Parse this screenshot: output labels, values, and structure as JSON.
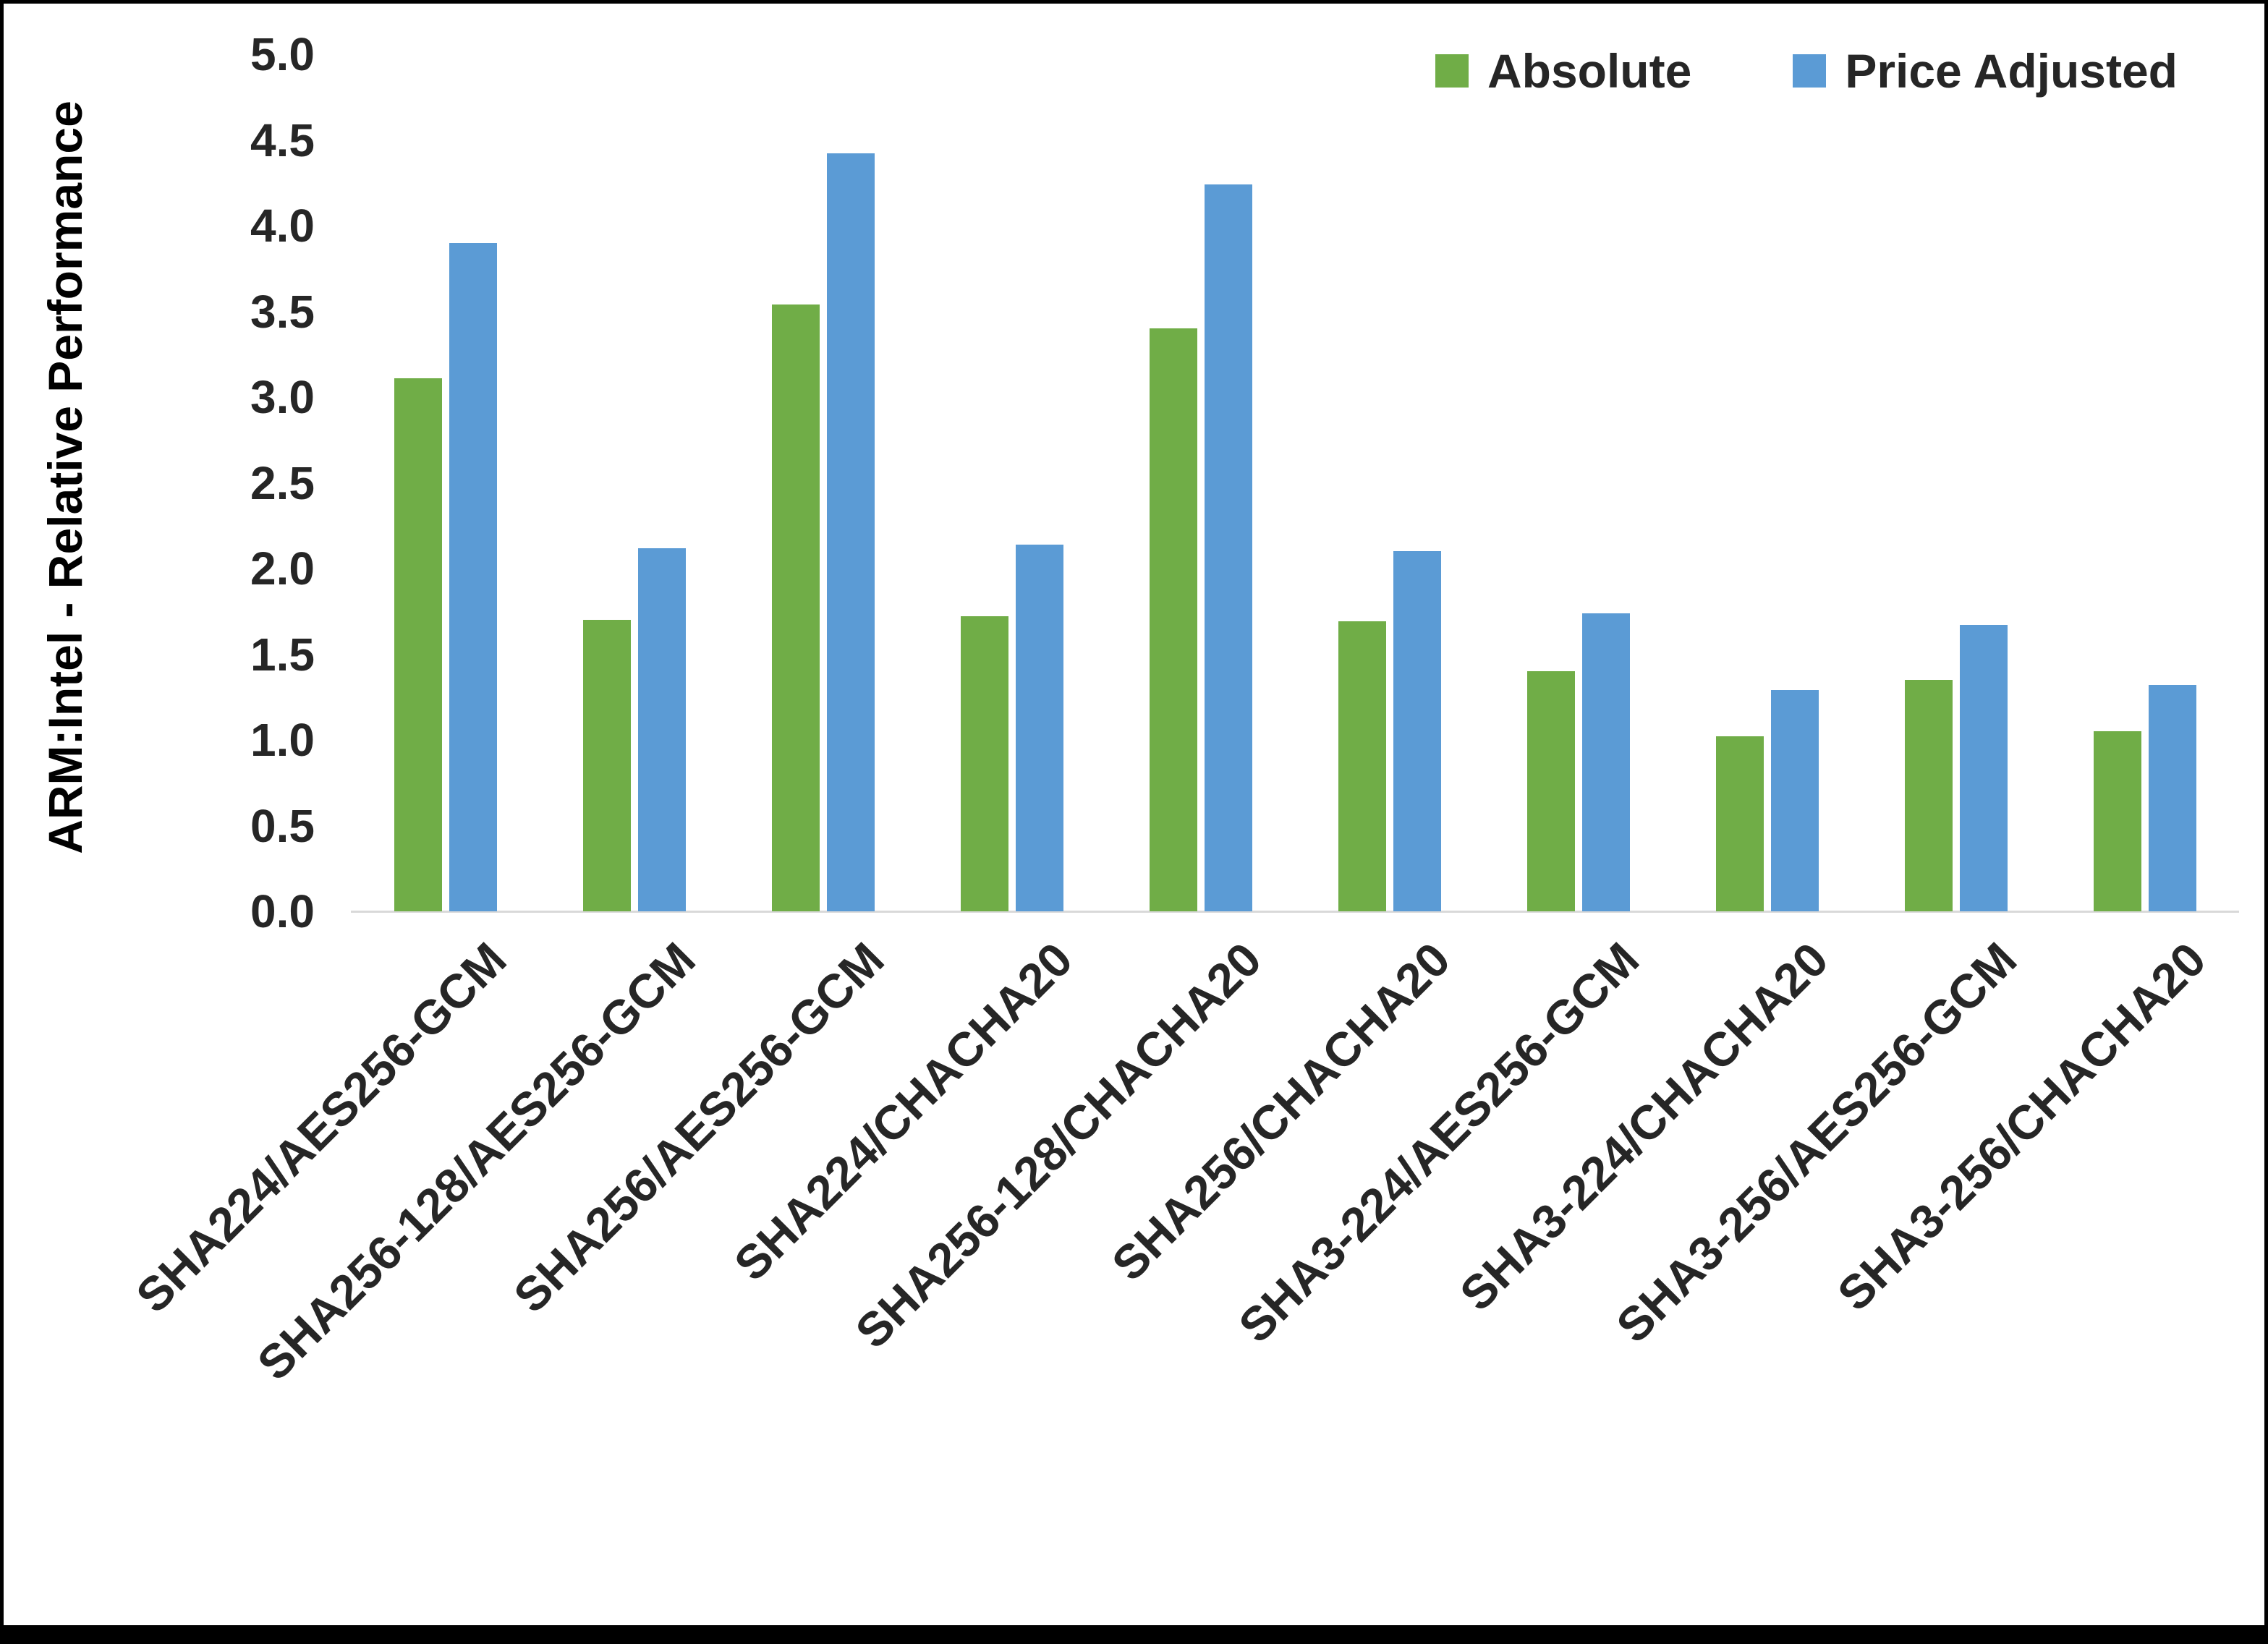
{
  "frame": {
    "background": "#ffffff",
    "border_color": "#000000"
  },
  "chart_data": {
    "type": "bar",
    "title": "",
    "xlabel": "",
    "ylabel": "ARM:Intel - Relative Performance",
    "ylim": [
      0,
      5
    ],
    "ytick_step": 0.5,
    "yticks": [
      "0.0",
      "0.5",
      "1.0",
      "1.5",
      "2.0",
      "2.5",
      "3.0",
      "3.5",
      "4.0",
      "4.5",
      "5.0"
    ],
    "grid": false,
    "legend_position": "top-right",
    "categories": [
      "SHA224/AES256-GCM",
      "SHA256-128/AES256-GCM",
      "SHA256/AES256-GCM",
      "SHA224/CHACHA20",
      "SHA256-128/CHACHA20",
      "SHA256/CHACHA20",
      "SHA3-224/AES256-GCM",
      "SHA3-224/CHACHA20",
      "SHA3-256/AES256-GCM",
      "SHA3-256/CHACHA20"
    ],
    "series": [
      {
        "name": "Absolute",
        "color": "#70AD47",
        "values": [
          3.11,
          1.7,
          3.54,
          1.72,
          3.4,
          1.69,
          1.4,
          1.02,
          1.35,
          1.05
        ]
      },
      {
        "name": "Price Adjusted",
        "color": "#5B9BD5",
        "values": [
          3.9,
          2.12,
          4.42,
          2.14,
          4.24,
          2.1,
          1.74,
          1.29,
          1.67,
          1.32
        ]
      }
    ],
    "axis_line_color": "#d9d9d9",
    "text_color": "#262626"
  }
}
